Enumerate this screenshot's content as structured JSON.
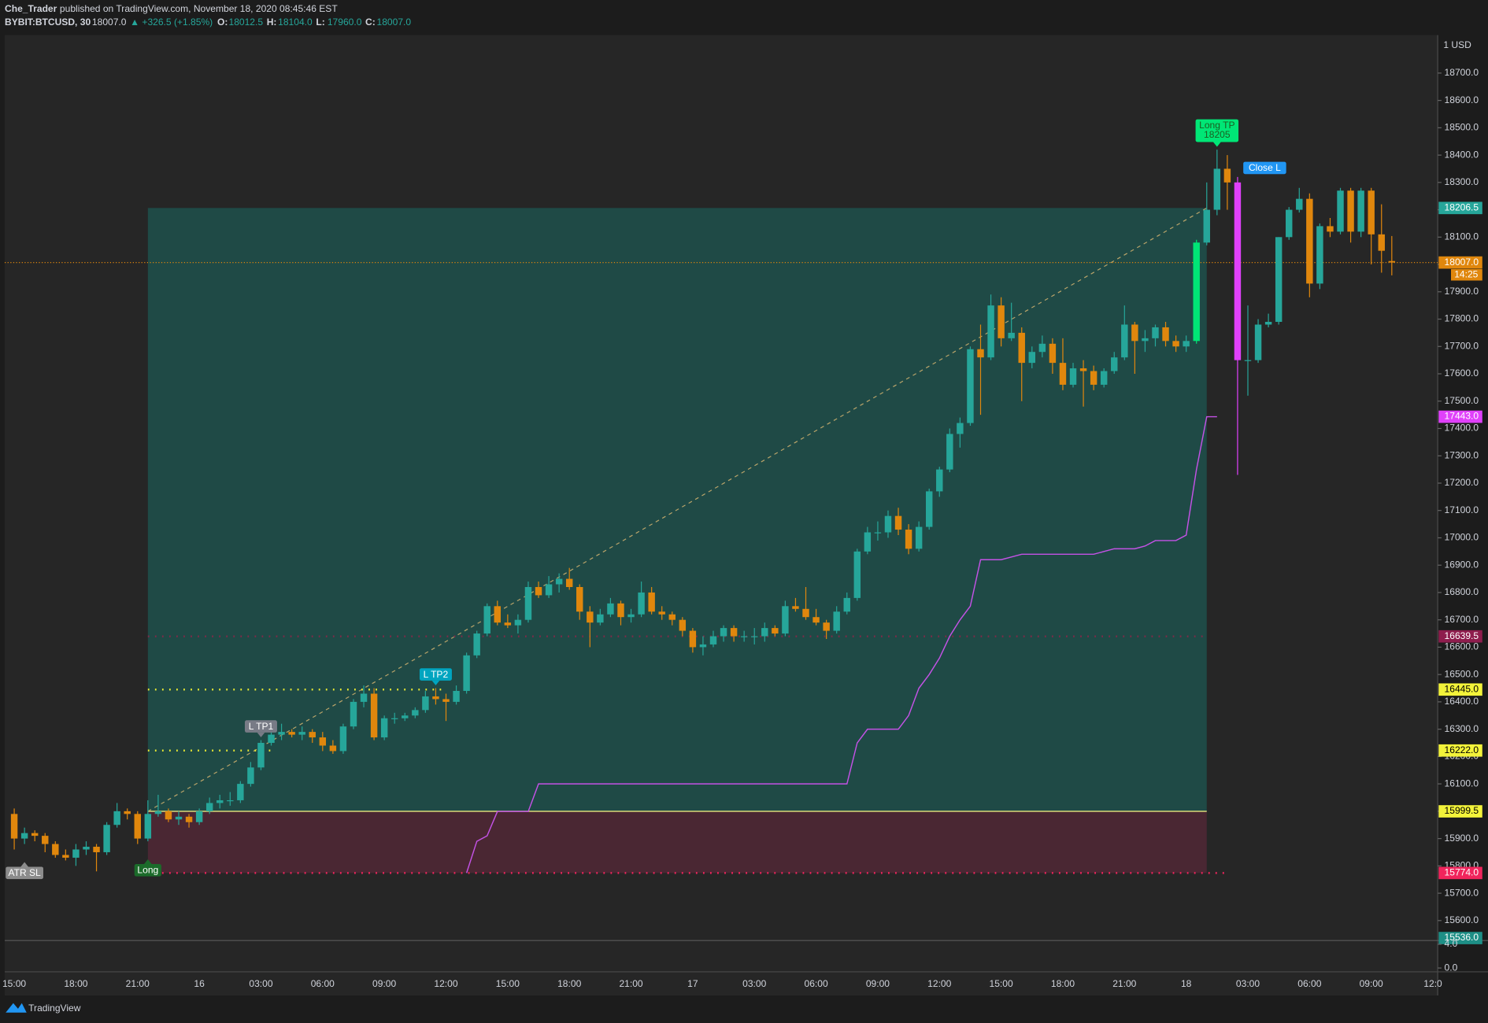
{
  "header": {
    "author": "Che_Trader",
    "published": " published on TradingView.com, November 18, 2020 08:45:46 EST",
    "symbol": "BYBIT:BTCUSD, 30",
    "last": "18007.0",
    "change": "▲ +326.5 (+1.85%)",
    "quotes": [
      {
        "label": "O:",
        "value": "18012.5"
      },
      {
        "label": "H:",
        "value": "18104.0"
      },
      {
        "label": "L:",
        "value": "17960.0"
      },
      {
        "label": "C:",
        "value": "18007.0"
      }
    ]
  },
  "footer": {
    "brand": "TradingView"
  },
  "chart_data": {
    "type": "candlestick",
    "currency_label": "1 USD",
    "up_color": "#26a69a",
    "down_color": "#e0870d",
    "highlight_bars": [
      {
        "index": 115,
        "color": "#00e676"
      },
      {
        "index": 119,
        "color": "#e040fb"
      }
    ],
    "ylim": [
      15527,
      18839
    ],
    "yticks": [
      {
        "value": 18700,
        "label": "18700.0"
      },
      {
        "value": 18600,
        "label": "18600.0"
      },
      {
        "value": 18500,
        "label": "18500.0"
      },
      {
        "value": 18400,
        "label": "18400.0"
      },
      {
        "value": 18300,
        "label": "18300.0"
      },
      {
        "value": 18200,
        "label": "18200.0"
      },
      {
        "value": 18100,
        "label": "18100.0"
      },
      {
        "value": 18000,
        "label": "18000.0"
      },
      {
        "value": 17900,
        "label": "17900.0"
      },
      {
        "value": 17800,
        "label": "17800.0"
      },
      {
        "value": 17700,
        "label": "17700.0"
      },
      {
        "value": 17600,
        "label": "17600.0"
      },
      {
        "value": 17500,
        "label": "17500.0"
      },
      {
        "value": 17400,
        "label": "17400.0"
      },
      {
        "value": 17300,
        "label": "17300.0"
      },
      {
        "value": 17200,
        "label": "17200.0"
      },
      {
        "value": 17100,
        "label": "17100.0"
      },
      {
        "value": 17000,
        "label": "17000.0"
      },
      {
        "value": 16900,
        "label": "16900.0"
      },
      {
        "value": 16800,
        "label": "16800.0"
      },
      {
        "value": 16700,
        "label": "16700.0"
      },
      {
        "value": 16600,
        "label": "16600.0"
      },
      {
        "value": 16500,
        "label": "16500.0"
      },
      {
        "value": 16400,
        "label": "16400.0"
      },
      {
        "value": 16300,
        "label": "16300.0"
      },
      {
        "value": 16200,
        "label": "16200.0"
      },
      {
        "value": 16100,
        "label": "16100.0"
      },
      {
        "value": 16000,
        "label": "16000.0"
      },
      {
        "value": 15900,
        "label": "15900.0"
      },
      {
        "value": 15800,
        "label": "15800.0"
      },
      {
        "value": 15700,
        "label": "15700.0"
      },
      {
        "value": 15600,
        "label": "15600.0"
      }
    ],
    "categories": [
      "15:00",
      null,
      null,
      null,
      null,
      null,
      "18:00",
      null,
      null,
      null,
      null,
      null,
      "21:00",
      null,
      null,
      null,
      null,
      null,
      "16",
      null,
      null,
      null,
      null,
      null,
      "03:00",
      null,
      null,
      null,
      null,
      null,
      "06:00",
      null,
      null,
      null,
      null,
      null,
      "09:00",
      null,
      null,
      null,
      null,
      null,
      "12:00",
      null,
      null,
      null,
      null,
      null,
      "15:00",
      null,
      null,
      null,
      null,
      null,
      "18:00",
      null,
      null,
      null,
      null,
      null,
      "21:00",
      null,
      null,
      null,
      null,
      null,
      "17",
      null,
      null,
      null,
      null,
      null,
      "03:00",
      null,
      null,
      null,
      null,
      null,
      "06:00",
      null,
      null,
      null,
      null,
      null,
      "09:00",
      null,
      null,
      null,
      null,
      null,
      "12:00",
      null,
      null,
      null,
      null,
      null,
      "15:00",
      null,
      null,
      null,
      null,
      null,
      "18:00",
      null,
      null,
      null,
      null,
      null,
      "21:00",
      null,
      null,
      null,
      null,
      null,
      "18",
      null,
      null,
      null,
      null,
      null,
      "03:00",
      null,
      null,
      null,
      null,
      null,
      "06:00",
      null,
      null,
      null,
      null,
      null,
      "09:00",
      null,
      null,
      null,
      null,
      null,
      "12:0"
    ],
    "ohlc": [
      [
        15990,
        16010,
        15860,
        15900
      ],
      [
        15900,
        15940,
        15880,
        15920
      ],
      [
        15920,
        15930,
        15890,
        15910
      ],
      [
        15910,
        15920,
        15850,
        15880
      ],
      [
        15880,
        15890,
        15830,
        15840
      ],
      [
        15840,
        15860,
        15820,
        15830
      ],
      [
        15830,
        15880,
        15800,
        15860
      ],
      [
        15860,
        15890,
        15840,
        15870
      ],
      [
        15870,
        15880,
        15780,
        15850
      ],
      [
        15850,
        15960,
        15840,
        15950
      ],
      [
        15950,
        16030,
        15940,
        16000
      ],
      [
        16000,
        16010,
        15970,
        15990
      ],
      [
        15990,
        16000,
        15880,
        15900
      ],
      [
        15900,
        16040,
        15890,
        15990
      ],
      [
        15990,
        16060,
        15980,
        16000
      ],
      [
        16000,
        16010,
        15960,
        15970
      ],
      [
        15970,
        16000,
        15950,
        15980
      ],
      [
        15980,
        15990,
        15940,
        15960
      ],
      [
        15960,
        16010,
        15950,
        16000
      ],
      [
        16000,
        16050,
        15990,
        16030
      ],
      [
        16030,
        16060,
        16010,
        16040
      ],
      [
        16040,
        16070,
        16020,
        16040
      ],
      [
        16040,
        16110,
        16030,
        16100
      ],
      [
        16100,
        16180,
        16090,
        16160
      ],
      [
        16160,
        16260,
        16150,
        16250
      ],
      [
        16250,
        16300,
        16240,
        16280
      ],
      [
        16280,
        16320,
        16260,
        16290
      ],
      [
        16290,
        16300,
        16270,
        16280
      ],
      [
        16280,
        16310,
        16260,
        16290
      ],
      [
        16290,
        16300,
        16250,
        16270
      ],
      [
        16270,
        16290,
        16220,
        16240
      ],
      [
        16240,
        16260,
        16210,
        16220
      ],
      [
        16220,
        16320,
        16210,
        16310
      ],
      [
        16310,
        16410,
        16300,
        16400
      ],
      [
        16400,
        16460,
        16380,
        16430
      ],
      [
        16430,
        16450,
        16260,
        16270
      ],
      [
        16270,
        16350,
        16260,
        16340
      ],
      [
        16340,
        16360,
        16320,
        16340
      ],
      [
        16340,
        16360,
        16330,
        16350
      ],
      [
        16350,
        16380,
        16340,
        16370
      ],
      [
        16370,
        16440,
        16360,
        16420
      ],
      [
        16420,
        16450,
        16390,
        16410
      ],
      [
        16410,
        16430,
        16330,
        16400
      ],
      [
        16400,
        16460,
        16390,
        16440
      ],
      [
        16440,
        16580,
        16430,
        16570
      ],
      [
        16570,
        16660,
        16560,
        16650
      ],
      [
        16650,
        16760,
        16640,
        16750
      ],
      [
        16750,
        16770,
        16680,
        16690
      ],
      [
        16690,
        16720,
        16670,
        16680
      ],
      [
        16680,
        16720,
        16650,
        16700
      ],
      [
        16700,
        16840,
        16690,
        16820
      ],
      [
        16820,
        16840,
        16780,
        16790
      ],
      [
        16790,
        16860,
        16780,
        16830
      ],
      [
        16830,
        16870,
        16800,
        16850
      ],
      [
        16850,
        16890,
        16810,
        16820
      ],
      [
        16820,
        16830,
        16700,
        16730
      ],
      [
        16730,
        16750,
        16600,
        16690
      ],
      [
        16690,
        16740,
        16680,
        16720
      ],
      [
        16720,
        16780,
        16710,
        16760
      ],
      [
        16760,
        16770,
        16680,
        16710
      ],
      [
        16710,
        16740,
        16690,
        16720
      ],
      [
        16720,
        16840,
        16710,
        16800
      ],
      [
        16800,
        16820,
        16720,
        16730
      ],
      [
        16730,
        16750,
        16700,
        16720
      ],
      [
        16720,
        16730,
        16680,
        16700
      ],
      [
        16700,
        16710,
        16640,
        16660
      ],
      [
        16660,
        16670,
        16580,
        16600
      ],
      [
        16600,
        16640,
        16570,
        16610
      ],
      [
        16610,
        16660,
        16600,
        16640
      ],
      [
        16640,
        16680,
        16620,
        16670
      ],
      [
        16670,
        16680,
        16620,
        16640
      ],
      [
        16640,
        16660,
        16620,
        16640
      ],
      [
        16640,
        16670,
        16610,
        16640
      ],
      [
        16640,
        16690,
        16620,
        16670
      ],
      [
        16670,
        16680,
        16640,
        16650
      ],
      [
        16650,
        16770,
        16640,
        16750
      ],
      [
        16750,
        16780,
        16730,
        16740
      ],
      [
        16740,
        16820,
        16700,
        16710
      ],
      [
        16710,
        16740,
        16680,
        16690
      ],
      [
        16690,
        16700,
        16630,
        16660
      ],
      [
        16660,
        16750,
        16650,
        16730
      ],
      [
        16730,
        16800,
        16720,
        16780
      ],
      [
        16780,
        16960,
        16770,
        16950
      ],
      [
        16950,
        17040,
        16940,
        17020
      ],
      [
        17020,
        17060,
        16990,
        17020
      ],
      [
        17020,
        17100,
        17000,
        17080
      ],
      [
        17080,
        17110,
        17010,
        17030
      ],
      [
        17030,
        17050,
        16940,
        16960
      ],
      [
        16960,
        17060,
        16950,
        17040
      ],
      [
        17040,
        17180,
        17030,
        17170
      ],
      [
        17170,
        17260,
        17150,
        17250
      ],
      [
        17250,
        17400,
        17240,
        17380
      ],
      [
        17380,
        17440,
        17330,
        17420
      ],
      [
        17420,
        17700,
        17410,
        17690
      ],
      [
        17690,
        17780,
        17450,
        17660
      ],
      [
        17660,
        17890,
        17650,
        17850
      ],
      [
        17850,
        17880,
        17700,
        17730
      ],
      [
        17730,
        17860,
        17720,
        17750
      ],
      [
        17750,
        17770,
        17500,
        17640
      ],
      [
        17640,
        17700,
        17620,
        17680
      ],
      [
        17680,
        17740,
        17660,
        17710
      ],
      [
        17710,
        17730,
        17600,
        17640
      ],
      [
        17640,
        17730,
        17540,
        17560
      ],
      [
        17560,
        17640,
        17550,
        17620
      ],
      [
        17620,
        17650,
        17480,
        17610
      ],
      [
        17610,
        17630,
        17540,
        17560
      ],
      [
        17560,
        17620,
        17550,
        17610
      ],
      [
        17610,
        17680,
        17600,
        17660
      ],
      [
        17660,
        17850,
        17650,
        17780
      ],
      [
        17780,
        17790,
        17600,
        17720
      ],
      [
        17720,
        17760,
        17680,
        17730
      ],
      [
        17730,
        17780,
        17700,
        17770
      ],
      [
        17770,
        17790,
        17700,
        17720
      ],
      [
        17720,
        17740,
        17680,
        17700
      ],
      [
        17700,
        17740,
        17680,
        17720
      ],
      [
        17720,
        18090,
        17710,
        18080
      ],
      [
        18080,
        18300,
        18070,
        18200
      ],
      [
        18200,
        18420,
        18180,
        18350
      ],
      [
        18350,
        18400,
        18200,
        18300
      ],
      [
        18300,
        18320,
        17230,
        17650
      ],
      [
        17650,
        17850,
        17520,
        17650
      ],
      [
        17650,
        17800,
        17640,
        17780
      ],
      [
        17780,
        17820,
        17770,
        17790
      ],
      [
        17790,
        18100,
        17780,
        18100
      ],
      [
        18100,
        18210,
        18090,
        18200
      ],
      [
        18200,
        18280,
        18190,
        18240
      ],
      [
        18240,
        18260,
        17880,
        17930
      ],
      [
        17930,
        18150,
        17910,
        18140
      ],
      [
        18140,
        18170,
        18100,
        18120
      ],
      [
        18120,
        18280,
        18110,
        18270
      ],
      [
        18270,
        18280,
        18080,
        18120
      ],
      [
        18120,
        18280,
        18100,
        18270
      ],
      [
        18270,
        18280,
        18000,
        18110
      ],
      [
        18110,
        18220,
        17970,
        18050
      ],
      [
        18012.5,
        18104,
        17960,
        18007
      ],
      null,
      null,
      null,
      null
    ],
    "trail": {
      "color": "#c452e6",
      "values": [
        null,
        null,
        null,
        null,
        null,
        null,
        null,
        null,
        null,
        null,
        null,
        null,
        null,
        null,
        null,
        null,
        null,
        null,
        null,
        null,
        null,
        null,
        null,
        null,
        null,
        null,
        null,
        null,
        null,
        null,
        null,
        null,
        null,
        null,
        null,
        null,
        null,
        null,
        null,
        null,
        null,
        null,
        null,
        null,
        15774,
        15890,
        15910,
        15999,
        15999,
        15999,
        15999,
        16100,
        16100,
        16100,
        16100,
        16100,
        16100,
        16100,
        16100,
        16100,
        16100,
        16100,
        16100,
        16100,
        16100,
        16100,
        16100,
        16100,
        16100,
        16100,
        16100,
        16100,
        16100,
        16100,
        16100,
        16100,
        16100,
        16100,
        16100,
        16100,
        16100,
        16100,
        16250,
        16300,
        16300,
        16300,
        16300,
        16350,
        16450,
        16500,
        16560,
        16640,
        16700,
        16750,
        16920,
        16920,
        16920,
        16930,
        16940,
        16940,
        16940,
        16940,
        16940,
        16940,
        16940,
        16940,
        16950,
        16960,
        16960,
        16960,
        16970,
        16990,
        16990,
        16990,
        17010,
        17250,
        17443,
        17443,
        null,
        null,
        null,
        null,
        null,
        null,
        null,
        null,
        null,
        null,
        null,
        null,
        null,
        null,
        null,
        null,
        null,
        null,
        null,
        null
      ]
    },
    "position": {
      "entry": 15999.5,
      "target": 18206.5,
      "stop": 15774,
      "entry_index": 13,
      "exit_index": 116
    },
    "levels": [
      {
        "value": 16222,
        "start": 13,
        "end": 25,
        "color": "#e6e633"
      },
      {
        "value": 16445,
        "start": 13,
        "end": 42,
        "color": "#e6e633"
      },
      {
        "value": 16639.5,
        "start": 13,
        "end": 116,
        "color": "#7d2a48"
      }
    ],
    "last_price": 18007,
    "last_color": "#e0870d",
    "badges": [
      {
        "value": 18206.5,
        "color": "#26a69a"
      },
      {
        "value": 18007,
        "label": "18007.0",
        "color": "#e0870d",
        "countdown": "14:25"
      },
      {
        "value": 17443,
        "label": "17443.0",
        "color": "#e040fb"
      },
      {
        "value": 16639.5,
        "color": "#8e1d4d"
      },
      {
        "value": 16445,
        "label": "16445.0",
        "color": "#f3f33a"
      },
      {
        "value": 16222,
        "label": "16222.0",
        "color": "#f3f33a"
      },
      {
        "value": 15999.5,
        "color": "#f3f33a"
      },
      {
        "value": 15774,
        "label": "15774.0",
        "color": "#f0245c"
      },
      {
        "value": 15536,
        "label": "15536.0",
        "color": "#1e8f86"
      }
    ],
    "signals": [
      {
        "text": "Long",
        "index": 13,
        "anchor": "below",
        "color": "#1b6b2a"
      },
      {
        "text": "L TP1",
        "index": 24,
        "anchor": "above",
        "color": "#787b86"
      },
      {
        "text": "L TP2",
        "index": 41,
        "anchor": "above",
        "color": "#00a5c0"
      },
      {
        "text": "Long TP",
        "value": 18205,
        "index": 117,
        "anchor": "above",
        "color": "#00e676"
      },
      {
        "text": "Close L",
        "index": 119,
        "anchor": "right",
        "color": "#2196f3"
      },
      {
        "text": "ATR SL",
        "index": 1,
        "anchor": "below",
        "color": "#8c8c8c"
      }
    ],
    "pane2": {
      "ylim": [
        -0.64,
        4.64
      ],
      "yticks": [
        {
          "value": 4,
          "label": "4.0"
        },
        {
          "value": 0,
          "label": "0.0"
        }
      ]
    }
  }
}
